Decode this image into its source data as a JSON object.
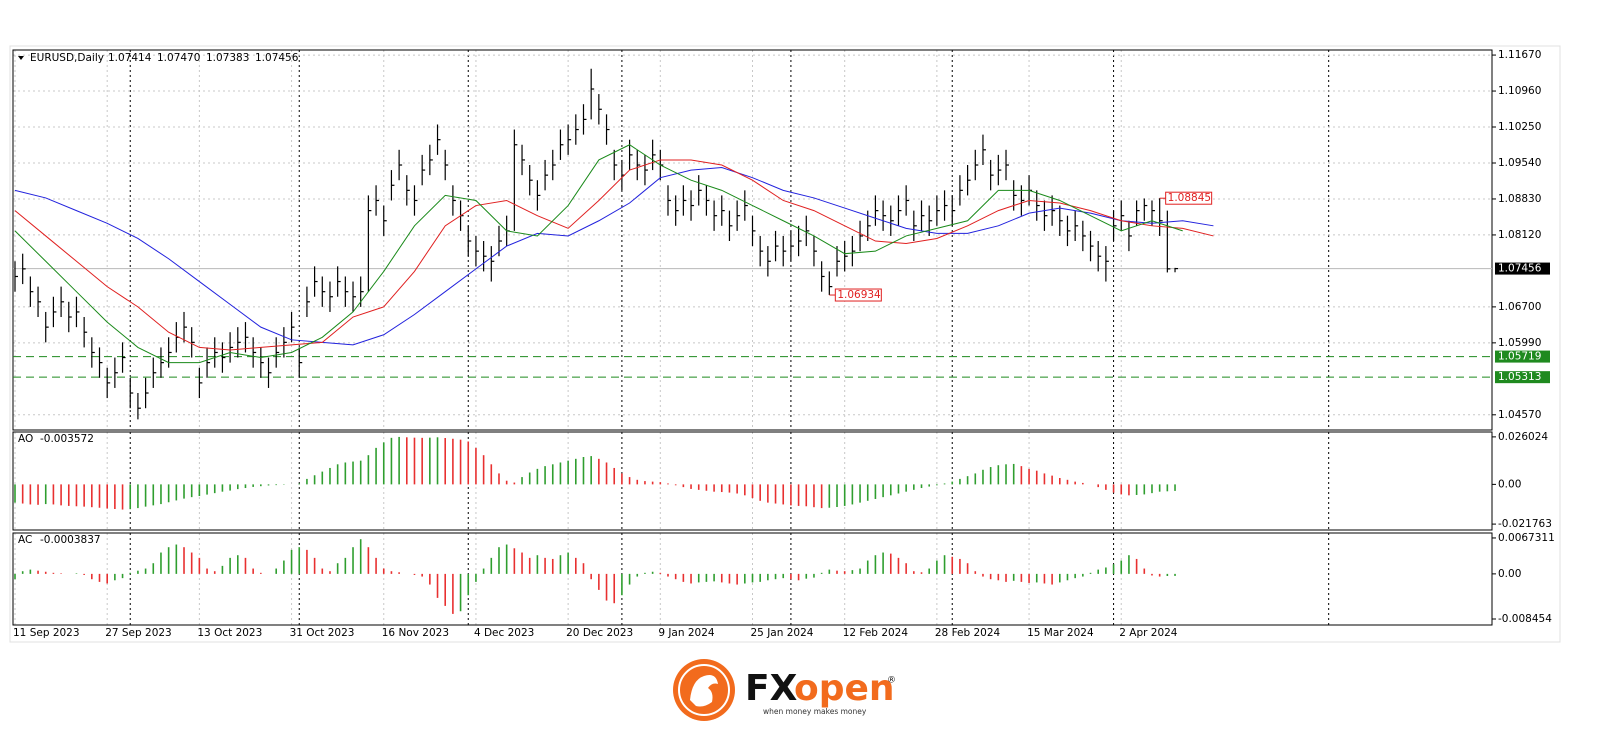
{
  "chart_data": [
    {
      "type": "ohlc",
      "title": "EURUSD,Daily",
      "quote": [
        1.07414,
        {
          "value": 1.0747,
          "label": "1.07470"
        },
        1.07383,
        1.07456
      ],
      "xlim": [
        0,
        192
      ],
      "ylim": [
        1.0427,
        1.1177
      ],
      "xticks": [
        {
          "value": 0,
          "label": "11 Sep 2023"
        },
        {
          "value": 12,
          "label": "27 Sep 2023"
        },
        {
          "value": 24,
          "label": "13 Oct 2023"
        },
        {
          "value": 36,
          "label": "31 Oct 2023"
        },
        {
          "value": 48,
          "label": "16 Nov 2023"
        },
        {
          "value": 60,
          "label": "4 Dec 2023"
        },
        {
          "value": 72,
          "label": "20 Dec 2023"
        },
        {
          "value": 84,
          "label": "9 Jan 2024"
        },
        {
          "value": 96,
          "label": "25 Jan 2024"
        },
        {
          "value": 108,
          "label": "12 Feb 2024"
        },
        {
          "value": 120,
          "label": "28 Feb 2024"
        },
        {
          "value": 132,
          "label": "15 Mar 2024"
        },
        {
          "value": 144,
          "label": "2 Apr 2024"
        }
      ],
      "separators": [
        15,
        37,
        59,
        79,
        101,
        122,
        143,
        171
      ],
      "yticks": [
        {
          "value": 1.1167,
          "label": "1.11670"
        },
        {
          "value": 1.1096,
          "label": "1.10960"
        },
        {
          "value": 1.1025,
          "label": "1.10250"
        },
        {
          "value": 1.0954,
          "label": "1.09540"
        },
        {
          "value": 1.0883,
          "label": "1.08830"
        },
        {
          "value": 1.0812,
          "label": "1.08120"
        },
        {
          "value": 1.067,
          "label": "1.06700"
        },
        {
          "value": 1.0599,
          "label": "1.05990"
        },
        {
          "value": 1.0457,
          "label": "1.04570"
        }
      ],
      "grid": true,
      "color": "#000000",
      "close": [
        1.073,
        1.0745,
        1.07,
        1.068,
        1.063,
        1.066,
        1.068,
        1.065,
        1.066,
        1.062,
        1.058,
        1.056,
        1.052,
        1.054,
        1.057,
        1.05,
        1.047,
        1.05,
        1.054,
        1.056,
        1.058,
        1.061,
        1.063,
        1.06,
        1.052,
        1.056,
        1.058,
        1.057,
        1.059,
        1.06,
        1.061,
        1.058,
        1.056,
        1.054,
        1.058,
        1.06,
        1.063,
        1.056,
        1.068,
        1.072,
        1.07,
        1.069,
        1.072,
        1.07,
        1.069,
        1.07,
        1.086,
        1.088,
        1.084,
        1.091,
        1.095,
        1.09,
        1.088,
        1.094,
        1.096,
        1.1,
        1.095,
        1.088,
        1.085,
        1.08,
        1.078,
        1.077,
        1.076,
        1.08,
        1.082,
        1.099,
        1.096,
        1.092,
        1.089,
        1.093,
        1.095,
        1.099,
        1.1,
        1.102,
        1.104,
        1.11,
        1.106,
        1.102,
        1.095,
        1.093,
        1.097,
        1.095,
        1.094,
        1.097,
        1.095,
        1.088,
        1.086,
        1.088,
        1.087,
        1.09,
        1.088,
        1.085,
        1.086,
        1.083,
        1.085,
        1.087,
        1.082,
        1.078,
        1.076,
        1.079,
        1.078,
        1.079,
        1.08,
        1.082,
        1.078,
        1.073,
        1.071,
        1.076,
        1.077,
        1.078,
        1.081,
        1.083,
        1.086,
        1.085,
        1.084,
        1.086,
        1.088,
        1.083,
        1.085,
        1.084,
        1.086,
        1.087,
        1.086,
        1.09,
        1.092,
        1.095,
        1.098,
        1.093,
        1.094,
        1.095,
        1.089,
        1.088,
        1.09,
        1.087,
        1.085,
        1.086,
        1.084,
        1.082,
        1.083,
        1.081,
        1.079,
        1.077,
        1.076,
        1.083,
        1.085,
        1.081,
        1.086,
        1.087,
        1.086,
        1.084,
        1.0745,
        1.07456
      ],
      "high": [
        1.076,
        1.0775,
        1.073,
        1.071,
        1.066,
        1.069,
        1.071,
        1.068,
        1.069,
        1.065,
        1.061,
        1.059,
        1.055,
        1.057,
        1.06,
        1.053,
        1.05,
        1.053,
        1.057,
        1.059,
        1.061,
        1.064,
        1.066,
        1.063,
        1.055,
        1.059,
        1.061,
        1.06,
        1.062,
        1.063,
        1.064,
        1.061,
        1.059,
        1.057,
        1.061,
        1.063,
        1.066,
        1.059,
        1.071,
        1.075,
        1.073,
        1.072,
        1.075,
        1.073,
        1.072,
        1.073,
        1.089,
        1.091,
        1.087,
        1.094,
        1.098,
        1.093,
        1.091,
        1.097,
        1.099,
        1.103,
        1.098,
        1.091,
        1.088,
        1.083,
        1.081,
        1.08,
        1.079,
        1.083,
        1.085,
        1.102,
        1.099,
        1.095,
        1.092,
        1.096,
        1.098,
        1.102,
        1.103,
        1.105,
        1.107,
        1.114,
        1.109,
        1.105,
        1.098,
        1.096,
        1.1,
        1.098,
        1.097,
        1.1,
        1.098,
        1.091,
        1.089,
        1.091,
        1.09,
        1.093,
        1.091,
        1.088,
        1.089,
        1.086,
        1.088,
        1.09,
        1.085,
        1.081,
        1.079,
        1.082,
        1.081,
        1.082,
        1.083,
        1.085,
        1.081,
        1.076,
        1.074,
        1.079,
        1.08,
        1.081,
        1.084,
        1.086,
        1.089,
        1.088,
        1.087,
        1.089,
        1.091,
        1.086,
        1.088,
        1.087,
        1.089,
        1.09,
        1.089,
        1.093,
        1.095,
        1.098,
        1.101,
        1.096,
        1.097,
        1.098,
        1.092,
        1.091,
        1.093,
        1.09,
        1.088,
        1.089,
        1.087,
        1.085,
        1.086,
        1.084,
        1.082,
        1.08,
        1.079,
        1.086,
        1.088,
        1.084,
        1.088,
        1.0884,
        1.088,
        1.08845,
        1.086,
        1.0747
      ],
      "low": [
        1.07,
        1.0715,
        1.067,
        1.065,
        1.06,
        1.063,
        1.065,
        1.062,
        1.063,
        1.059,
        1.055,
        1.053,
        1.049,
        1.051,
        1.054,
        1.047,
        1.0448,
        1.047,
        1.051,
        1.053,
        1.055,
        1.058,
        1.06,
        1.057,
        1.049,
        1.053,
        1.055,
        1.054,
        1.056,
        1.057,
        1.058,
        1.055,
        1.053,
        1.051,
        1.055,
        1.057,
        1.06,
        1.053,
        1.065,
        1.069,
        1.067,
        1.066,
        1.069,
        1.067,
        1.066,
        1.067,
        1.07,
        1.085,
        1.081,
        1.088,
        1.092,
        1.087,
        1.085,
        1.091,
        1.093,
        1.097,
        1.092,
        1.085,
        1.082,
        1.077,
        1.075,
        1.074,
        1.072,
        1.077,
        1.079,
        1.082,
        1.093,
        1.089,
        1.086,
        1.09,
        1.092,
        1.096,
        1.097,
        1.099,
        1.101,
        1.104,
        1.103,
        1.099,
        1.092,
        1.09,
        1.094,
        1.092,
        1.091,
        1.094,
        1.092,
        1.085,
        1.083,
        1.085,
        1.084,
        1.087,
        1.085,
        1.082,
        1.083,
        1.08,
        1.082,
        1.084,
        1.079,
        1.075,
        1.073,
        1.076,
        1.075,
        1.076,
        1.077,
        1.079,
        1.075,
        1.07,
        1.06934,
        1.073,
        1.074,
        1.075,
        1.078,
        1.08,
        1.083,
        1.082,
        1.081,
        1.083,
        1.085,
        1.08,
        1.082,
        1.081,
        1.083,
        1.084,
        1.083,
        1.087,
        1.089,
        1.092,
        1.095,
        1.09,
        1.091,
        1.092,
        1.086,
        1.085,
        1.087,
        1.084,
        1.082,
        1.083,
        1.081,
        1.079,
        1.08,
        1.078,
        1.076,
        1.074,
        1.072,
        1.08,
        1.082,
        1.078,
        1.083,
        1.084,
        1.083,
        1.081,
        1.0738,
        1.07383
      ],
      "series": [
        {
          "color": "#2222dd",
          "x": [
            0,
            4,
            8,
            12,
            16,
            20,
            24,
            28,
            32,
            36,
            40,
            44,
            48,
            52,
            56,
            60,
            64,
            68,
            72,
            76,
            80,
            84,
            88,
            92,
            96,
            100,
            104,
            108,
            112,
            116,
            120,
            124,
            128,
            132,
            136,
            140,
            144,
            148,
            152,
            156
          ],
          "values": [
            1.09,
            1.0885,
            1.086,
            1.0835,
            1.0805,
            1.0765,
            1.072,
            1.0675,
            1.063,
            1.0605,
            1.06,
            1.0595,
            1.0615,
            1.0655,
            1.07,
            1.0745,
            1.079,
            1.0815,
            1.081,
            1.084,
            1.0875,
            1.0925,
            1.094,
            1.0945,
            1.0925,
            1.09,
            1.0885,
            1.0865,
            1.0845,
            1.0825,
            1.0815,
            1.0815,
            1.083,
            1.0855,
            1.0865,
            1.0855,
            1.084,
            1.0835,
            1.084,
            1.083
          ]
        },
        {
          "color": "#e02020",
          "x": [
            0,
            4,
            8,
            12,
            16,
            20,
            24,
            28,
            32,
            36,
            40,
            44,
            48,
            52,
            56,
            60,
            64,
            68,
            72,
            76,
            80,
            84,
            88,
            92,
            96,
            100,
            104,
            108,
            112,
            116,
            120,
            124,
            128,
            132,
            136,
            140,
            144,
            148,
            152,
            156
          ],
          "values": [
            1.086,
            1.081,
            1.076,
            1.071,
            1.067,
            1.062,
            1.059,
            1.0585,
            1.059,
            1.0595,
            1.06,
            1.065,
            1.067,
            1.074,
            1.083,
            1.087,
            1.088,
            1.085,
            1.0825,
            1.088,
            1.094,
            1.096,
            1.096,
            1.095,
            1.092,
            1.088,
            1.086,
            1.083,
            1.08,
            1.0795,
            1.0805,
            1.083,
            1.086,
            1.088,
            1.0875,
            1.086,
            1.084,
            1.083,
            1.0825,
            1.081
          ]
        },
        {
          "color": "#1a8a1a",
          "x": [
            0,
            4,
            8,
            12,
            16,
            20,
            24,
            28,
            32,
            36,
            40,
            44,
            48,
            52,
            56,
            60,
            64,
            68,
            72,
            76,
            80,
            84,
            88,
            92,
            96,
            100,
            104,
            108,
            112,
            116,
            120,
            124,
            128,
            132,
            136,
            140,
            144,
            148,
            152
          ],
          "values": [
            1.082,
            1.076,
            1.07,
            1.064,
            1.059,
            1.056,
            1.056,
            1.058,
            1.057,
            1.058,
            1.061,
            1.066,
            1.074,
            1.083,
            1.089,
            1.088,
            1.082,
            1.081,
            1.087,
            1.096,
            1.099,
            1.095,
            1.092,
            1.09,
            1.087,
            1.084,
            1.081,
            1.0775,
            1.078,
            1.081,
            1.0825,
            1.084,
            1.09,
            1.09,
            1.088,
            1.085,
            1.082,
            1.084,
            1.082
          ]
        }
      ],
      "levels": [
        1.05719,
        1.05313
      ],
      "level_color": "#1f8a1f",
      "last_price": 1.07456,
      "annotations": [
        {
          "x": 149,
          "value": 1.08845
        },
        {
          "x": 106,
          "value": 1.06934
        }
      ],
      "annotation_color": "#e02020"
    },
    {
      "type": "bar",
      "title": "AO",
      "current": -0.003572,
      "ylim": [
        -0.025,
        0.0287
      ],
      "yticks": [
        0.026024,
        {
          "value": 0,
          "label": "0.00"
        },
        -0.021763
      ],
      "up_color": "#2f9e2f",
      "down_color": "#e83030",
      "values": [
        -0.01,
        -0.0105,
        -0.011,
        -0.0112,
        -0.0108,
        -0.011,
        -0.0115,
        -0.0118,
        -0.012,
        -0.0122,
        -0.0125,
        -0.0128,
        -0.0132,
        -0.0135,
        -0.0138,
        -0.0136,
        -0.013,
        -0.0122,
        -0.0115,
        -0.0108,
        -0.0098,
        -0.0088,
        -0.0078,
        -0.007,
        -0.0064,
        -0.0056,
        -0.0048,
        -0.004,
        -0.0034,
        -0.0026,
        -0.002,
        -0.0014,
        -0.001,
        -0.0006,
        -0.0004,
        -0.0002,
        0.0,
        0.0004,
        0.003,
        0.005,
        0.007,
        0.009,
        0.011,
        0.012,
        0.0125,
        0.013,
        0.016,
        0.02,
        0.023,
        0.0255,
        0.026,
        0.0258,
        0.0256,
        0.0255,
        0.0256,
        0.0258,
        0.0254,
        0.025,
        0.0245,
        0.0235,
        0.02,
        0.016,
        0.011,
        0.006,
        0.002,
        0.001,
        0.004,
        0.0065,
        0.0085,
        0.01,
        0.011,
        0.012,
        0.013,
        0.014,
        0.015,
        0.0155,
        0.014,
        0.012,
        0.009,
        0.006,
        0.004,
        0.0025,
        0.0018,
        0.0015,
        0.0012,
        0.0005,
        -0.0005,
        -0.0015,
        -0.0025,
        -0.003,
        -0.0035,
        -0.004,
        -0.0042,
        -0.0045,
        -0.005,
        -0.006,
        -0.0075,
        -0.009,
        -0.01,
        -0.0105,
        -0.011,
        -0.0115,
        -0.0118,
        -0.012,
        -0.0125,
        -0.013,
        -0.0128,
        -0.0124,
        -0.0118,
        -0.011,
        -0.01,
        -0.009,
        -0.008,
        -0.007,
        -0.006,
        -0.005,
        -0.004,
        -0.003,
        -0.002,
        -0.0012,
        -0.0005,
        0.0005,
        0.0015,
        0.003,
        0.0045,
        0.006,
        0.008,
        0.0095,
        0.0105,
        0.011,
        0.0112,
        0.01,
        0.0085,
        0.0075,
        0.006,
        0.0048,
        0.0035,
        0.0025,
        0.0015,
        0.0008,
        0.0,
        -0.0015,
        -0.003,
        -0.0045,
        -0.0055,
        -0.006,
        -0.0058,
        -0.0055,
        -0.0048,
        -0.004,
        -0.0038,
        -0.003572
      ]
    },
    {
      "type": "bar",
      "title": "AC",
      "current": -0.0003837,
      "ylim": [
        -0.00958,
        0.00766
      ],
      "yticks": [
        0.0067311,
        {
          "value": 0,
          "label": "0.00"
        },
        -0.008454
      ],
      "up_color": "#2f9e2f",
      "down_color": "#e83030",
      "values": [
        -0.001,
        0.0005,
        0.0008,
        0.0006,
        0.0004,
        0.0002,
        0.0001,
        0.0,
        0.0001,
        -0.0002,
        -0.001,
        -0.0015,
        -0.0018,
        -0.0012,
        -0.0008,
        0.0002,
        0.0006,
        0.001,
        0.002,
        0.004,
        0.005,
        0.0055,
        0.005,
        0.004,
        0.003,
        0.001,
        0.0005,
        0.0015,
        0.003,
        0.0035,
        0.003,
        0.001,
        0.0002,
        0.0,
        0.001,
        0.0025,
        0.0045,
        0.005,
        0.0045,
        0.003,
        0.001,
        0.0005,
        0.002,
        0.003,
        0.005,
        0.0065,
        0.005,
        0.003,
        0.001,
        0.0005,
        0.0003,
        0.0,
        -0.0002,
        -0.0005,
        -0.002,
        -0.0045,
        -0.006,
        -0.0075,
        -0.007,
        -0.004,
        -0.0015,
        0.001,
        0.003,
        0.005,
        0.0055,
        0.0048,
        0.004,
        0.003,
        0.0035,
        0.003,
        0.0028,
        0.0035,
        0.004,
        0.003,
        0.002,
        -0.001,
        -0.003,
        -0.005,
        -0.0055,
        -0.004,
        -0.002,
        -0.0005,
        0.0002,
        0.0004,
        0.0002,
        -0.0005,
        -0.001,
        -0.0015,
        -0.0018,
        -0.0016,
        -0.0015,
        -0.0014,
        -0.0016,
        -0.0018,
        -0.002,
        -0.0018,
        -0.0016,
        -0.0015,
        -0.0012,
        -0.001,
        -0.0008,
        -0.001,
        -0.0012,
        -0.0009,
        -0.0007,
        0.0002,
        0.0008,
        0.0006,
        0.0005,
        0.0007,
        0.001,
        0.0025,
        0.0035,
        0.004,
        0.0038,
        0.003,
        0.002,
        0.0005,
        0.0003,
        0.001,
        0.0025,
        0.0035,
        0.0032,
        0.0028,
        0.002,
        0.0005,
        -0.0005,
        -0.001,
        -0.0012,
        -0.0015,
        -0.0013,
        -0.0015,
        -0.0017,
        -0.0016,
        -0.0018,
        -0.002,
        -0.0016,
        -0.0012,
        -0.0008,
        -0.0005,
        0.0002,
        0.0008,
        0.0012,
        0.0018,
        0.0025,
        0.0035,
        0.0028,
        0.001,
        -0.0003,
        -0.0005,
        -0.0004,
        -0.0003837
      ]
    }
  ],
  "logo": {
    "fx": "FX",
    "open": "open",
    "mark": "®",
    "tagline": "when money makes money"
  }
}
